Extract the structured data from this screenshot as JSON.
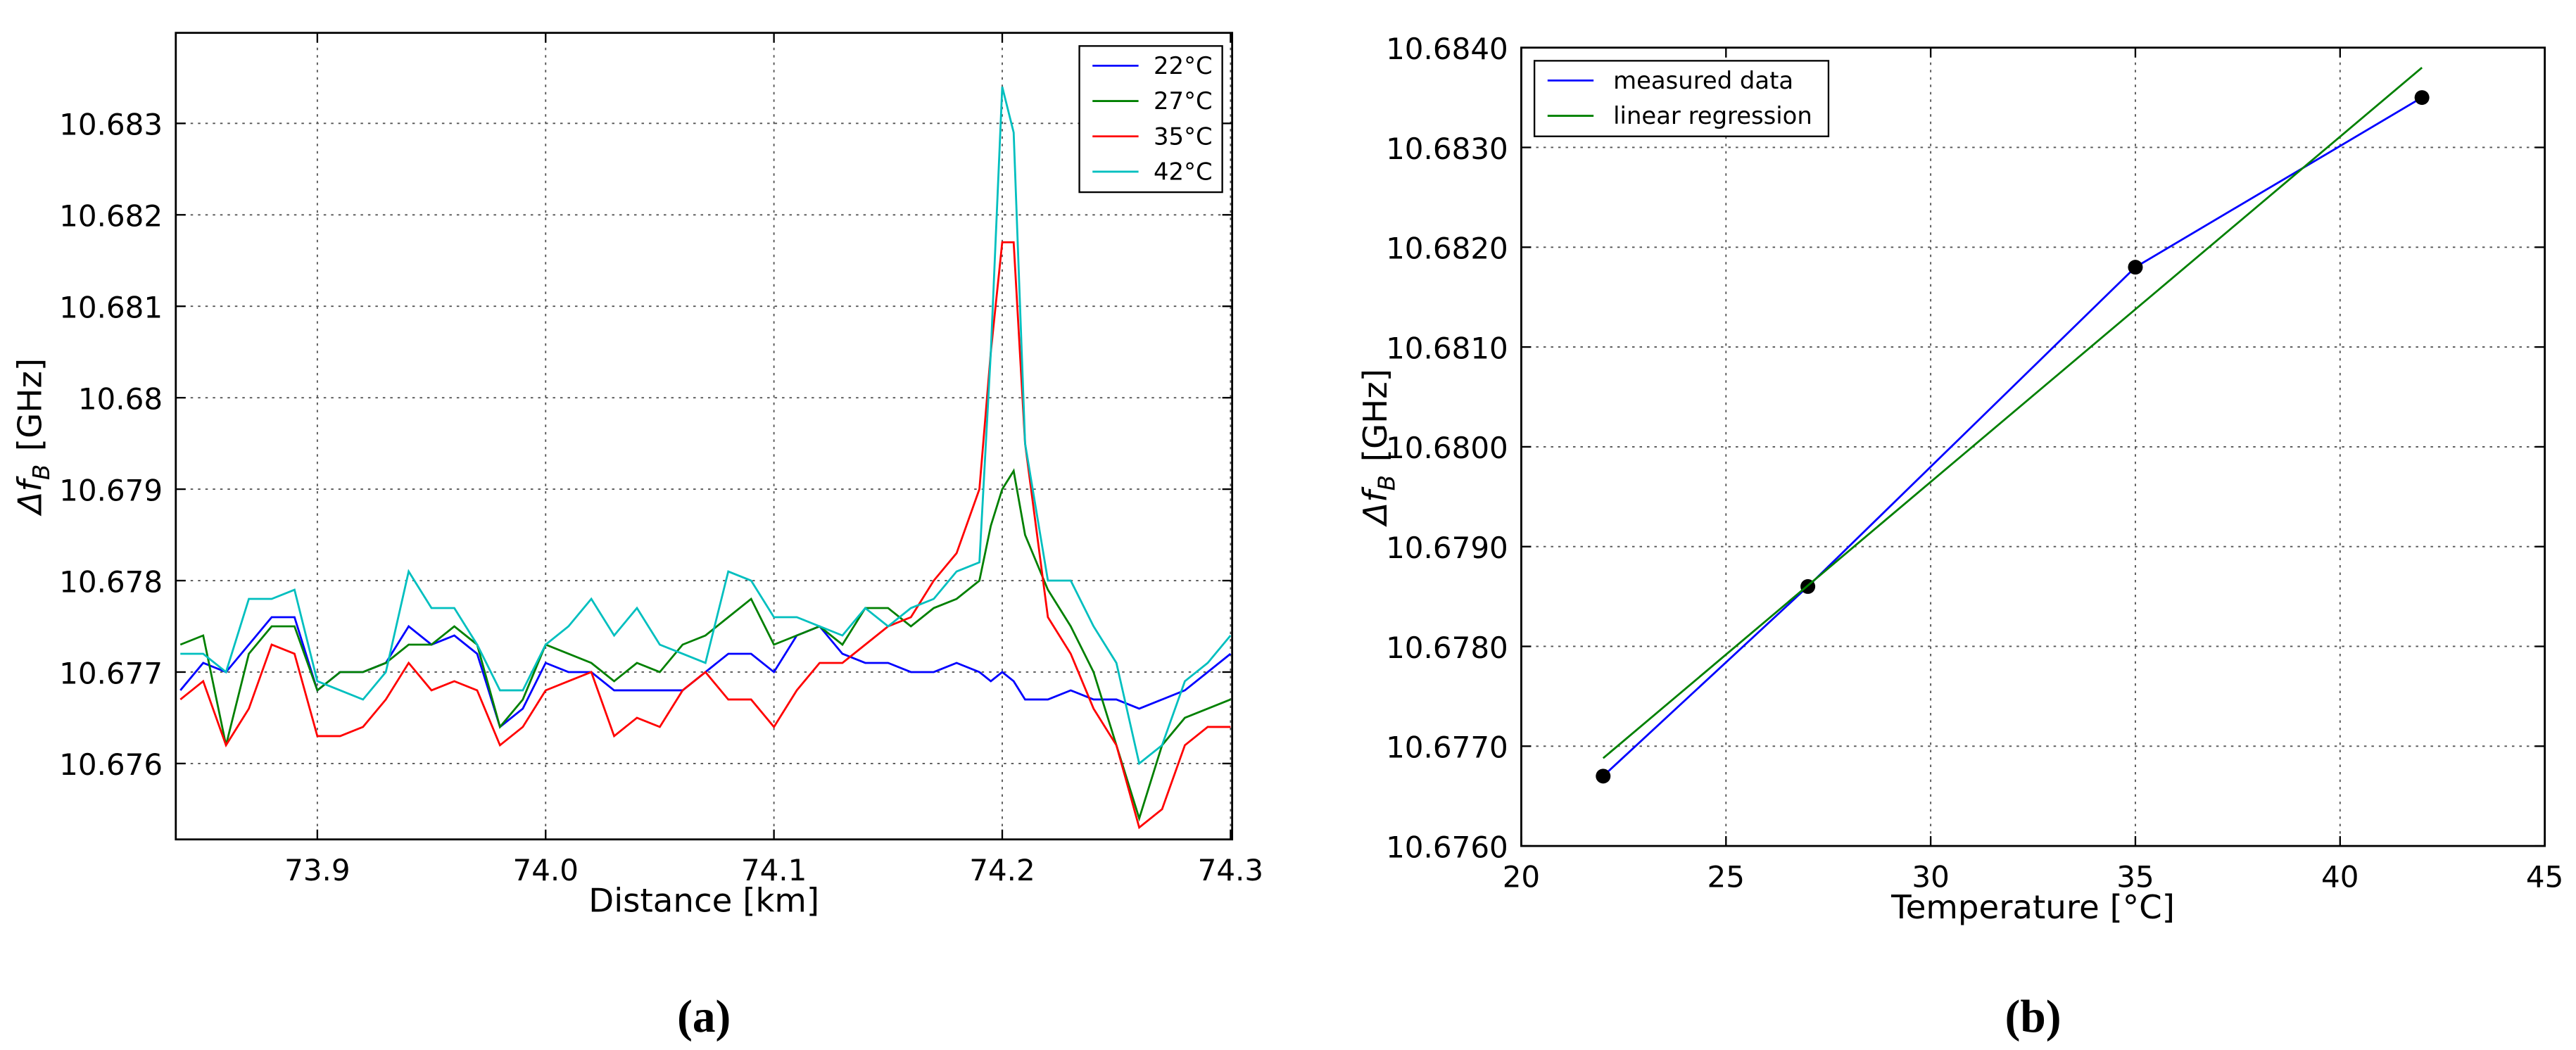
{
  "chart_data": [
    {
      "type": "line",
      "caption": "(a)",
      "xlabel": "Distance [km]",
      "ylabel": "Δf",
      "ylabel_sub": "B",
      "ylabel_unit": "[GHz]",
      "xlim": [
        73.838,
        74.3007
      ],
      "ylim": [
        10.67517,
        10.68399
      ],
      "xticks": [
        73.9,
        {
          "value": 74,
          "label": "74.0"
        },
        74.1,
        74.2,
        74.3
      ],
      "yticks": [
        10.676,
        10.677,
        10.678,
        10.679,
        10.68,
        10.681,
        10.682,
        10.683
      ],
      "grid": true,
      "legend": "upper right",
      "x": [
        73.84,
        73.85,
        73.86,
        73.87,
        73.88,
        73.89,
        73.9,
        73.91,
        73.92,
        73.93,
        73.94,
        73.95,
        73.96,
        73.97,
        73.98,
        73.99,
        74.0,
        74.01,
        74.02,
        74.03,
        74.04,
        74.05,
        74.06,
        74.07,
        74.08,
        74.09,
        74.1,
        74.11,
        74.12,
        74.13,
        74.14,
        74.15,
        74.16,
        74.17,
        74.18,
        74.19,
        74.195,
        74.2,
        74.205,
        74.21,
        74.22,
        74.23,
        74.24,
        74.25,
        74.26,
        74.27,
        74.28,
        74.29,
        74.3
      ],
      "series": [
        {
          "name": "22°C",
          "color": "#0000ff",
          "values": [
            10.6768,
            10.6771,
            10.677,
            10.6773,
            10.6776,
            10.6776,
            10.6768,
            10.677,
            10.677,
            10.6771,
            10.6775,
            10.6773,
            10.6774,
            10.6772,
            10.6764,
            10.6766,
            10.6771,
            10.677,
            10.677,
            10.6768,
            10.6768,
            10.6768,
            10.6768,
            10.677,
            10.6772,
            10.6772,
            10.677,
            10.6774,
            10.6775,
            10.6772,
            10.6771,
            10.6771,
            10.677,
            10.677,
            10.6771,
            10.677,
            10.6769,
            10.677,
            10.6769,
            10.6767,
            10.6767,
            10.6768,
            10.6767,
            10.6767,
            10.6766,
            10.6767,
            10.6768,
            10.677,
            10.6772
          ]
        },
        {
          "name": "27°C",
          "color": "#008000",
          "values": [
            10.6773,
            10.6774,
            10.6762,
            10.6772,
            10.6775,
            10.6775,
            10.6768,
            10.677,
            10.677,
            10.6771,
            10.6773,
            10.6773,
            10.6775,
            10.6773,
            10.6764,
            10.6767,
            10.6773,
            10.6772,
            10.6771,
            10.6769,
            10.6771,
            10.677,
            10.6773,
            10.6774,
            10.6776,
            10.6778,
            10.6773,
            10.6774,
            10.6775,
            10.6773,
            10.6777,
            10.6777,
            10.6775,
            10.6777,
            10.6778,
            10.678,
            10.6786,
            10.679,
            10.6792,
            10.6785,
            10.6779,
            10.6775,
            10.677,
            10.6762,
            10.6754,
            10.6762,
            10.6765,
            10.6766,
            10.6767
          ]
        },
        {
          "name": "35°C",
          "color": "#ff0000",
          "values": [
            10.6767,
            10.6769,
            10.6762,
            10.6766,
            10.6773,
            10.6772,
            10.6763,
            10.6763,
            10.6764,
            10.6767,
            10.6771,
            10.6768,
            10.6769,
            10.6768,
            10.6762,
            10.6764,
            10.6768,
            10.6769,
            10.677,
            10.6763,
            10.6765,
            10.6764,
            10.6768,
            10.677,
            10.6767,
            10.6767,
            10.6764,
            10.6768,
            10.6771,
            10.6771,
            10.6773,
            10.6775,
            10.6776,
            10.678,
            10.6783,
            10.679,
            10.6805,
            10.6817,
            10.6817,
            10.6795,
            10.6776,
            10.6772,
            10.6766,
            10.6762,
            10.6753,
            10.6755,
            10.6762,
            10.6764,
            10.6764
          ]
        },
        {
          "name": "42°C",
          "color": "#00bfbf",
          "values": [
            10.6772,
            10.6772,
            10.677,
            10.6778,
            10.6778,
            10.6779,
            10.6769,
            10.6768,
            10.6767,
            10.677,
            10.6781,
            10.6777,
            10.6777,
            10.6773,
            10.6768,
            10.6768,
            10.6773,
            10.6775,
            10.6778,
            10.6774,
            10.6777,
            10.6773,
            10.6772,
            10.6771,
            10.6781,
            10.678,
            10.6776,
            10.6776,
            10.6775,
            10.6774,
            10.6777,
            10.6775,
            10.6777,
            10.6778,
            10.6781,
            10.6782,
            10.6805,
            10.6834,
            10.6829,
            10.6795,
            10.678,
            10.678,
            10.6775,
            10.6771,
            10.676,
            10.6762,
            10.6769,
            10.6771,
            10.6774
          ]
        }
      ]
    },
    {
      "type": "line",
      "caption": "(b)",
      "xlabel": "Temperature [°C]",
      "ylabel": "Δf",
      "ylabel_sub": "B",
      "ylabel_unit": "[GHz]",
      "xlim": [
        20,
        45
      ],
      "ylim": [
        10.676,
        10.684
      ],
      "xticks": [
        20,
        25,
        30,
        35,
        40,
        45
      ],
      "yticks": [
        {
          "value": 10.676,
          "label": "10.6760"
        },
        {
          "value": 10.677,
          "label": "10.6770"
        },
        {
          "value": 10.678,
          "label": "10.6780"
        },
        {
          "value": 10.679,
          "label": "10.6790"
        },
        {
          "value": 10.68,
          "label": "10.6800"
        },
        {
          "value": 10.681,
          "label": "10.6810"
        },
        {
          "value": 10.682,
          "label": "10.6820"
        },
        {
          "value": 10.683,
          "label": "10.6830"
        },
        {
          "value": 10.684,
          "label": "10.6840"
        }
      ],
      "grid": true,
      "legend": "upper left",
      "series": [
        {
          "name": "measured data",
          "color": "#0000ff",
          "marker": true,
          "x": [
            22,
            27,
            35,
            42
          ],
          "values": [
            10.6767,
            10.6786,
            10.6818,
            10.6835
          ]
        },
        {
          "name": "linear regression",
          "color": "#008000",
          "x": [
            22,
            42
          ],
          "values": [
            10.67688,
            10.6838
          ]
        }
      ]
    }
  ]
}
